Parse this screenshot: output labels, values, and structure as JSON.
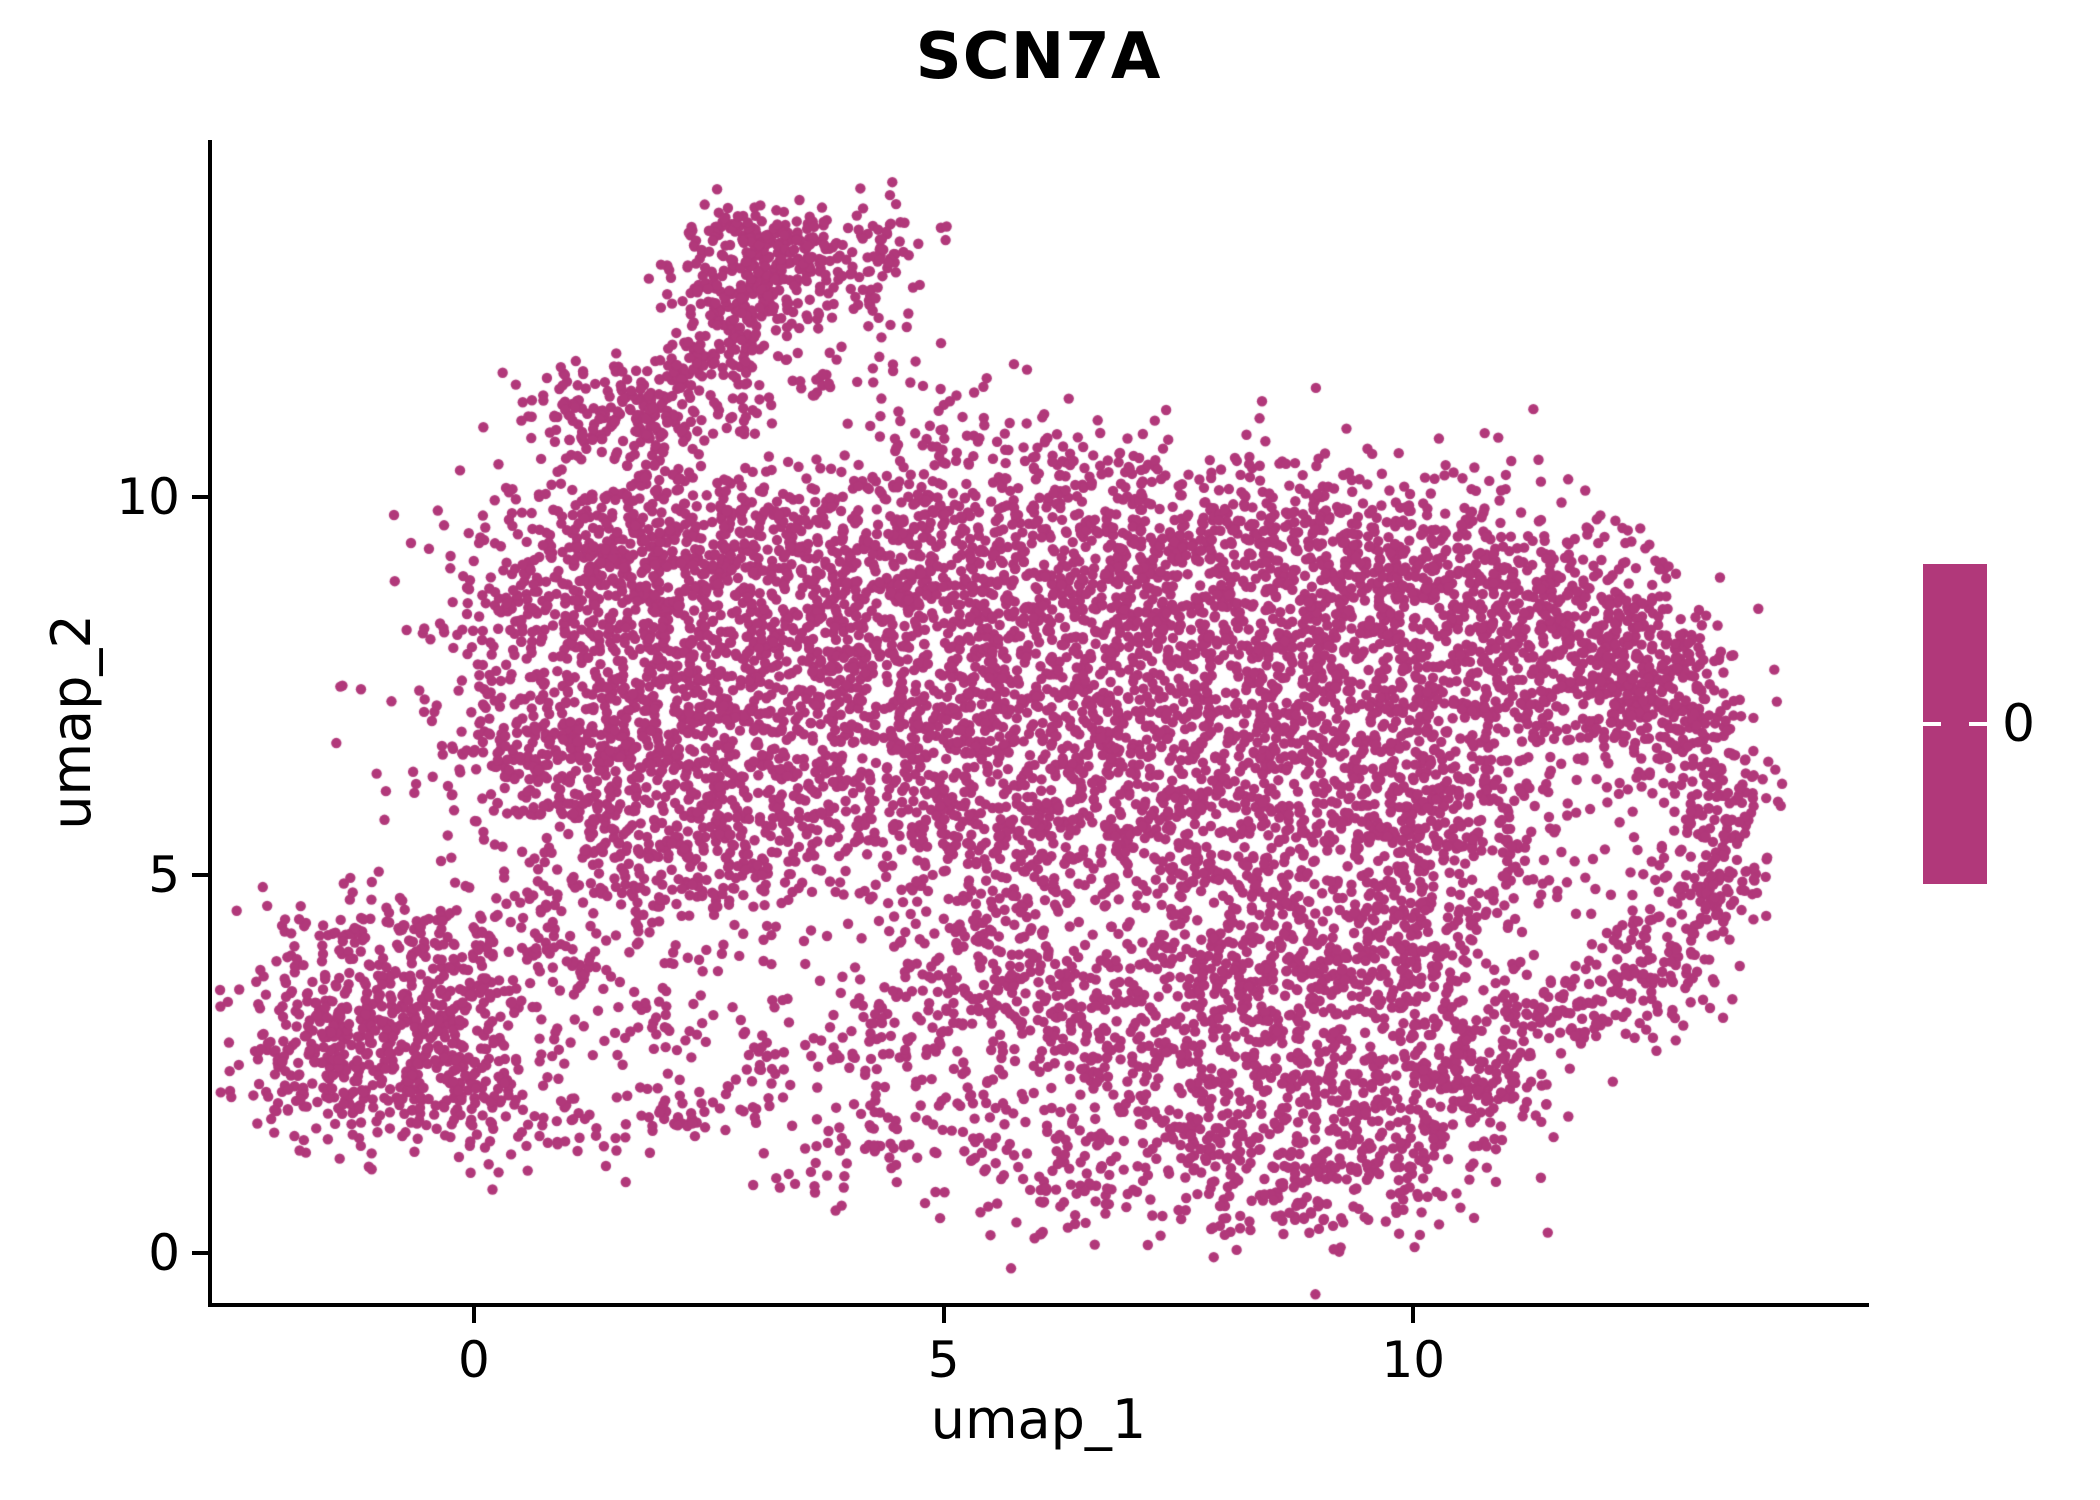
{
  "chart_data": {
    "type": "scatter",
    "title": "SCN7A",
    "xlabel": "umap_1",
    "ylabel": "umap_2",
    "point_color": "#B1387A",
    "background": "#FFFFFF",
    "axes": {
      "x_range": [
        -2.81,
        14.83
      ],
      "y_range": [
        -0.69,
        14.72
      ],
      "x_ticks": [
        0,
        5,
        10
      ],
      "y_ticks": [
        0,
        5,
        10
      ],
      "grid": false
    },
    "legend": {
      "label": "0",
      "bar_color": "#B1387A",
      "position": "right"
    },
    "n_points_approx": 11350,
    "blobs_format": [
      "center_x",
      "center_y",
      "sigma_x",
      "sigma_y",
      "count"
    ],
    "blobs": [
      [
        1.95,
        11.15,
        0.3,
        0.25,
        60
      ],
      [
        2.35,
        11.7,
        0.3,
        0.28,
        70
      ],
      [
        2.75,
        12.25,
        0.3,
        0.28,
        80
      ],
      [
        3.1,
        12.8,
        0.3,
        0.28,
        90
      ],
      [
        3.4,
        13.3,
        0.32,
        0.25,
        90
      ],
      [
        3.0,
        13.5,
        0.35,
        0.22,
        60
      ],
      [
        2.55,
        13.05,
        0.3,
        0.3,
        50
      ],
      [
        4.25,
        13.1,
        0.3,
        0.35,
        70
      ],
      [
        1.15,
        11.25,
        0.33,
        0.28,
        70
      ],
      [
        1.6,
        10.7,
        0.45,
        0.45,
        45
      ],
      [
        2.3,
        10.2,
        0.6,
        0.6,
        45
      ],
      [
        3.1,
        11.3,
        0.45,
        0.5,
        50
      ],
      [
        4.0,
        12.0,
        0.4,
        0.5,
        35
      ],
      [
        4.6,
        10.6,
        0.45,
        0.6,
        30
      ],
      [
        5.3,
        10.8,
        0.6,
        0.6,
        40
      ],
      [
        6.3,
        10.4,
        0.5,
        0.4,
        30
      ],
      [
        0.55,
        9.9,
        0.5,
        0.5,
        35
      ],
      [
        -1.05,
        2.9,
        0.75,
        0.75,
        350
      ],
      [
        -1.5,
        2.4,
        0.45,
        0.5,
        130
      ],
      [
        -0.5,
        3.6,
        0.5,
        0.5,
        130
      ],
      [
        -0.15,
        2.3,
        0.45,
        0.45,
        110
      ],
      [
        -1.2,
        4.2,
        0.5,
        0.35,
        60
      ],
      [
        0.45,
        4.2,
        0.4,
        0.4,
        45
      ],
      [
        0.3,
        1.6,
        0.5,
        0.3,
        40
      ],
      [
        1.0,
        3.1,
        0.5,
        0.5,
        40
      ],
      [
        1.9,
        1.75,
        0.7,
        0.25,
        55
      ],
      [
        2.9,
        2.4,
        0.5,
        0.35,
        45
      ],
      [
        2.2,
        3.3,
        0.6,
        0.5,
        50
      ],
      [
        0.9,
        7.3,
        0.85,
        0.9,
        280
      ],
      [
        0.55,
        6.3,
        0.5,
        0.5,
        90
      ],
      [
        1.8,
        8.3,
        0.8,
        0.8,
        280
      ],
      [
        1.7,
        6.3,
        0.7,
        0.7,
        220
      ],
      [
        2.8,
        9.3,
        0.8,
        0.6,
        260
      ],
      [
        1.6,
        9.4,
        0.6,
        0.5,
        120
      ],
      [
        0.7,
        8.8,
        0.5,
        0.5,
        90
      ],
      [
        2.9,
        7.4,
        0.9,
        0.9,
        320
      ],
      [
        2.6,
        5.4,
        0.8,
        0.7,
        240
      ],
      [
        1.5,
        4.7,
        0.7,
        0.5,
        90
      ],
      [
        4.2,
        8.6,
        0.9,
        0.9,
        330
      ],
      [
        4.2,
        6.6,
        0.9,
        0.9,
        300
      ],
      [
        5.5,
        9.3,
        0.9,
        0.7,
        280
      ],
      [
        7.2,
        9.4,
        0.9,
        0.65,
        280
      ],
      [
        8.8,
        9.2,
        0.85,
        0.65,
        260
      ],
      [
        5.6,
        7.6,
        1.0,
        0.9,
        330
      ],
      [
        7.0,
        7.8,
        0.95,
        0.9,
        330
      ],
      [
        8.5,
        7.6,
        0.95,
        0.9,
        330
      ],
      [
        5.3,
        5.6,
        0.9,
        0.8,
        260
      ],
      [
        6.8,
        5.9,
        0.9,
        0.85,
        280
      ],
      [
        8.3,
        5.7,
        0.9,
        0.85,
        280
      ],
      [
        9.8,
        8.3,
        0.85,
        0.85,
        300
      ],
      [
        10.9,
        8.0,
        0.75,
        0.8,
        260
      ],
      [
        11.9,
        7.8,
        0.6,
        0.7,
        180
      ],
      [
        9.7,
        6.3,
        0.8,
        0.8,
        220
      ],
      [
        10.6,
        5.9,
        0.6,
        0.6,
        120
      ],
      [
        10.3,
        9.3,
        0.6,
        0.5,
        110
      ],
      [
        11.2,
        8.9,
        0.5,
        0.45,
        90
      ],
      [
        12.2,
        8.3,
        0.45,
        0.5,
        90
      ],
      [
        12.3,
        6.9,
        0.4,
        0.5,
        90
      ],
      [
        12.7,
        7.5,
        0.4,
        0.5,
        110
      ],
      [
        13.1,
        6.7,
        0.3,
        0.5,
        90
      ],
      [
        13.3,
        5.7,
        0.28,
        0.5,
        90
      ],
      [
        13.1,
        4.7,
        0.3,
        0.45,
        80
      ],
      [
        12.6,
        3.9,
        0.35,
        0.4,
        70
      ],
      [
        12.0,
        3.4,
        0.4,
        0.35,
        60
      ],
      [
        11.4,
        3.05,
        0.4,
        0.3,
        50
      ],
      [
        11.9,
        5.2,
        0.7,
        0.9,
        45
      ],
      [
        10.4,
        4.8,
        0.5,
        0.7,
        140
      ],
      [
        8.6,
        2.4,
        1.0,
        0.9,
        330
      ],
      [
        7.4,
        1.6,
        0.7,
        0.6,
        160
      ],
      [
        9.0,
        0.9,
        0.8,
        0.45,
        150
      ],
      [
        10.1,
        1.9,
        0.6,
        0.6,
        150
      ],
      [
        10.9,
        2.5,
        0.45,
        0.45,
        90
      ],
      [
        9.9,
        3.4,
        0.6,
        0.6,
        140
      ],
      [
        8.9,
        4.0,
        0.7,
        0.6,
        180
      ],
      [
        7.4,
        3.6,
        0.8,
        0.7,
        200
      ],
      [
        6.2,
        2.9,
        0.6,
        0.6,
        130
      ],
      [
        5.3,
        3.7,
        0.6,
        0.6,
        130
      ],
      [
        4.6,
        3.0,
        0.5,
        0.45,
        80
      ],
      [
        5.0,
        1.5,
        0.7,
        0.4,
        70
      ],
      [
        4.0,
        1.3,
        0.5,
        0.3,
        40
      ],
      [
        6.3,
        0.8,
        0.5,
        0.35,
        50
      ]
    ]
  }
}
